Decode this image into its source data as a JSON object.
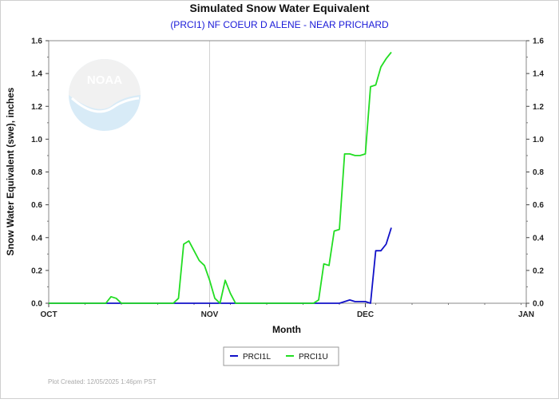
{
  "chart_data": {
    "type": "line",
    "title": "Simulated Snow Water Equivalent",
    "subtitle": "(PRCI1) NF COEUR D ALENE - NEAR PRICHARD",
    "xlabel": "Month",
    "ylabel": "Snow Water Equivalent (swe),  inches",
    "x_ticks": [
      "OCT",
      "NOV",
      "DEC",
      "JAN"
    ],
    "x_range": [
      "2025-10-01",
      "2026-01-01"
    ],
    "ylim": [
      0,
      1.6
    ],
    "y_ticks": [
      "0.0",
      "0.2",
      "0.4",
      "0.6",
      "0.8",
      "1.0",
      "1.2",
      "1.4",
      "1.6"
    ],
    "grid": "vertical at month boundaries",
    "legend_position": "bottom",
    "series": [
      {
        "name": "PRCI1L",
        "color": "#1010c8",
        "points": [
          [
            "2025-10-01",
            0
          ],
          [
            "2025-11-20",
            0
          ],
          [
            "2025-11-26",
            0.0
          ],
          [
            "2025-11-28",
            0.02
          ],
          [
            "2025-11-29",
            0.01
          ],
          [
            "2025-12-01",
            0.01
          ],
          [
            "2025-12-02",
            0.0
          ],
          [
            "2025-12-03",
            0.32
          ],
          [
            "2025-12-04",
            0.32
          ],
          [
            "2025-12-05",
            0.36
          ],
          [
            "2025-12-06",
            0.46
          ]
        ]
      },
      {
        "name": "PRCI1U",
        "color": "#22dd22",
        "points": [
          [
            "2025-10-01",
            0
          ],
          [
            "2025-10-12",
            0
          ],
          [
            "2025-10-13",
            0.04
          ],
          [
            "2025-10-14",
            0.03
          ],
          [
            "2025-10-15",
            0.0
          ],
          [
            "2025-10-25",
            0.0
          ],
          [
            "2025-10-26",
            0.03
          ],
          [
            "2025-10-27",
            0.36
          ],
          [
            "2025-10-28",
            0.38
          ],
          [
            "2025-10-29",
            0.32
          ],
          [
            "2025-10-30",
            0.26
          ],
          [
            "2025-10-31",
            0.23
          ],
          [
            "2025-11-01",
            0.14
          ],
          [
            "2025-11-02",
            0.03
          ],
          [
            "2025-11-03",
            0.0
          ],
          [
            "2025-11-04",
            0.14
          ],
          [
            "2025-11-05",
            0.06
          ],
          [
            "2025-11-06",
            0.0
          ],
          [
            "2025-11-21",
            0.0
          ],
          [
            "2025-11-22",
            0.02
          ],
          [
            "2025-11-23",
            0.24
          ],
          [
            "2025-11-24",
            0.23
          ],
          [
            "2025-11-25",
            0.44
          ],
          [
            "2025-11-26",
            0.45
          ],
          [
            "2025-11-27",
            0.91
          ],
          [
            "2025-11-28",
            0.91
          ],
          [
            "2025-11-29",
            0.9
          ],
          [
            "2025-11-30",
            0.9
          ],
          [
            "2025-12-01",
            0.91
          ],
          [
            "2025-12-02",
            1.32
          ],
          [
            "2025-12-03",
            1.33
          ],
          [
            "2025-12-04",
            1.44
          ],
          [
            "2025-12-05",
            1.49
          ],
          [
            "2025-12-06",
            1.53
          ]
        ]
      }
    ]
  },
  "footer": {
    "plot_created": "Plot Created:  12/05/2025 1:46pm PST"
  },
  "logo": {
    "text": "NOAA"
  }
}
